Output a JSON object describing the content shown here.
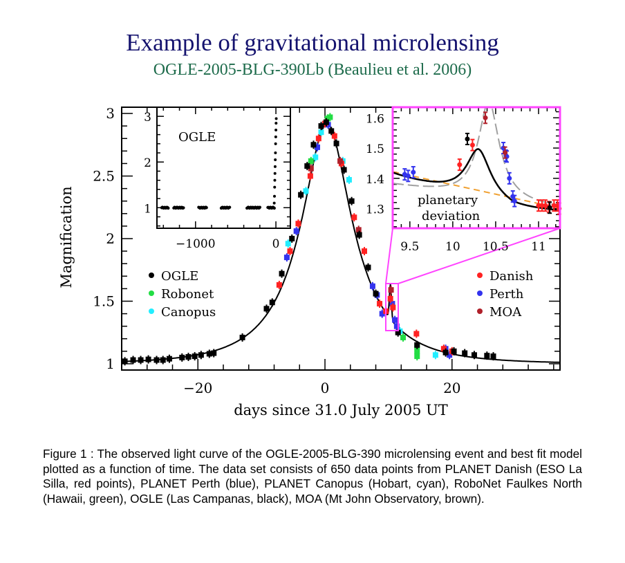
{
  "header": {
    "title": "Example of gravitational microlensing",
    "subtitle": "OGLE-2005-BLG-390Lb (Beaulieu et al. 2006)"
  },
  "colors": {
    "title": "#14126e",
    "subtitle": "#1d6b4b",
    "zoom_box": "#ff44ff",
    "OGLE": "#000000",
    "Robonet": "#22dd44",
    "Canopus": "#22eeff",
    "Danish": "#ff2222",
    "Perth": "#3333ee",
    "MOA": "#b0202a",
    "model": "#000000",
    "single_lens_model": "#a0a0a0",
    "baseline_trend": "#f0a030"
  },
  "chart_data": [
    {
      "id": "main",
      "type": "scatter",
      "title": "",
      "xlabel": "days since 31.0 July 2005 UT",
      "ylabel": "Magnification",
      "xlim": [
        -32,
        37
      ],
      "ylim": [
        0.95,
        3.05
      ],
      "xticks": [
        -20,
        0,
        20
      ],
      "xtick_labels": [
        "−20",
        "0",
        "20"
      ],
      "xminor_step": 4,
      "yticks": [
        1,
        1.5,
        2,
        2.5,
        3
      ],
      "ytick_labels": [
        "1",
        "1.5",
        "2",
        "2.5",
        "3"
      ],
      "yminor_step": 0.1,
      "grid": false,
      "legend": [
        {
          "name": "OGLE",
          "position": "left"
        },
        {
          "name": "Robonet",
          "position": "left"
        },
        {
          "name": "Canopus",
          "position": "left"
        },
        {
          "name": "Danish",
          "position": "right"
        },
        {
          "name": "Perth",
          "position": "right"
        },
        {
          "name": "MOA",
          "position": "right"
        }
      ],
      "model": {
        "name": "best fit model",
        "t0": 0.3,
        "u0": 0.359,
        "tE": 11.0,
        "planet_bump": {
          "t": 10.3,
          "amp": 0.28,
          "width": 0.22
        }
      },
      "series": [
        {
          "name": "OGLE",
          "x": [
            -31.5,
            -30.2,
            -29,
            -27.8,
            -26.5,
            -25.5,
            -24.5,
            -22.5,
            -21.5,
            -20.5,
            -19.5,
            -18.2,
            -17.5,
            -13,
            -9.2,
            -8.3,
            -6.8,
            -5.2,
            -3.8,
            -2.8,
            -1.8,
            -0.6,
            0.2,
            1,
            1.8,
            3,
            4.2,
            5.4,
            6.8,
            8,
            11.5,
            14.5,
            19,
            20.3,
            22,
            23.5,
            25.5,
            26.5
          ],
          "y": [
            1.02,
            1.03,
            1.03,
            1.035,
            1.03,
            1.03,
            1.04,
            1.05,
            1.055,
            1.06,
            1.07,
            1.08,
            1.085,
            1.21,
            1.44,
            1.49,
            1.72,
            2.0,
            2.35,
            2.58,
            2.75,
            2.9,
            2.93,
            2.86,
            2.76,
            2.55,
            2.3,
            2.03,
            1.77,
            1.56,
            1.25,
            1.15,
            1.09,
            1.1,
            1.085,
            1.07,
            1.065,
            1.06
          ]
        },
        {
          "name": "Robonet",
          "x": [
            -2.2,
            0.4,
            0.8,
            12.3,
            14.5,
            14.5,
            14.5
          ],
          "y": [
            2.62,
            2.96,
            2.97,
            1.21,
            1.14,
            1.06,
            1.1
          ]
        },
        {
          "name": "Canopus",
          "x": [
            -5.8,
            -3,
            -1.5,
            -0.6,
            2.8,
            3.8,
            11.8,
            17.4
          ],
          "y": [
            1.96,
            2.38,
            2.65,
            2.85,
            2.62,
            2.47,
            1.26,
            1.07
          ]
        },
        {
          "name": "Danish",
          "x": [
            -7.2,
            -5.5,
            -4.2,
            -2.3,
            -1,
            0,
            1.5,
            2.6,
            4.6,
            6.2,
            8.6,
            9.6,
            10.3,
            10.7,
            14.4,
            18.7,
            20
          ],
          "y": [
            1.63,
            1.9,
            2.12,
            2.5,
            2.8,
            2.92,
            2.82,
            2.6,
            2.17,
            1.9,
            1.48,
            1.42,
            1.52,
            1.45,
            1.24,
            1.12,
            1.1
          ]
        },
        {
          "name": "Perth",
          "x": [
            -6,
            -4.5,
            -1.2,
            0.5,
            7.5,
            8.2,
            9,
            10.6,
            11,
            11.3,
            19,
            19.6
          ],
          "y": [
            1.85,
            2.06,
            2.73,
            2.91,
            1.62,
            1.55,
            1.4,
            1.48,
            1.35,
            1.3,
            1.12,
            1.07
          ]
        },
        {
          "name": "MOA",
          "x": [
            -2.2,
            2.4,
            5.3,
            10.4
          ],
          "y": [
            2.56,
            2.62,
            2.07,
            1.59
          ]
        }
      ]
    },
    {
      "id": "inset-ogle",
      "type": "scatter",
      "title": "OGLE",
      "xlabel": "",
      "ylabel": "",
      "xlim": [
        -1480,
        180
      ],
      "ylim": [
        0.55,
        3.2
      ],
      "xticks": [
        -1000,
        0
      ],
      "xtick_labels": [
        "−1000",
        "0"
      ],
      "xminor_step": 200,
      "yticks": [
        1,
        2,
        3
      ],
      "ytick_labels": [
        "1",
        "2",
        "3"
      ],
      "yminor_step": 0.2,
      "series": [
        {
          "name": "OGLE",
          "baseline_groups": [
            [
              -1420,
              -1340
            ],
            [
              -1270,
              -1150
            ],
            [
              -960,
              -860
            ],
            [
              -680,
              -570
            ],
            [
              -360,
              -200
            ],
            [
              -100,
              -20
            ]
          ],
          "baseline_y": 1.0,
          "peak_x": [
            5,
            8,
            10,
            12,
            14,
            16,
            18,
            20,
            22,
            24,
            26,
            28,
            30
          ],
          "peak_y": [
            1.1,
            1.25,
            1.45,
            1.6,
            1.75,
            1.9,
            2.05,
            2.2,
            2.4,
            2.55,
            2.7,
            2.85,
            2.95
          ]
        }
      ]
    },
    {
      "id": "inset-planetary",
      "type": "scatter",
      "title": "planetary deviation",
      "annotation": "planetary deviation",
      "xlabel": "",
      "ylabel": "",
      "xlim": [
        9.3,
        11.25
      ],
      "ylim": [
        1.235,
        1.635
      ],
      "xticks": [
        9.5,
        10,
        10.5,
        11
      ],
      "xtick_labels": [
        "9.5",
        "10",
        "10.5",
        "11"
      ],
      "xminor_step": 0.1,
      "yticks": [
        1.3,
        1.4,
        1.5,
        1.6
      ],
      "ytick_labels": [
        "1.3",
        "1.4",
        "1.5",
        "1.6"
      ],
      "yminor_step": 0.02,
      "series": [
        {
          "name": "Perth",
          "x": [
            9.44,
            9.48,
            9.54,
            10.59,
            10.62,
            10.63,
            10.66,
            10.7,
            10.72
          ],
          "y": [
            1.413,
            1.408,
            1.42,
            1.5,
            1.475,
            1.472,
            1.4,
            1.34,
            1.325
          ]
        },
        {
          "name": "Danish",
          "x": [
            10.08,
            10.23,
            11.0,
            11.04,
            11.08,
            11.12,
            11.18,
            11.22,
            11.24
          ],
          "y": [
            1.445,
            1.51,
            1.31,
            1.31,
            1.31,
            1.305,
            1.31,
            1.31,
            1.3
          ]
        },
        {
          "name": "OGLE",
          "x": [
            10.17,
            11.13
          ],
          "y": [
            1.53,
            1.303
          ]
        },
        {
          "name": "MOA",
          "x": [
            10.38,
            10.61
          ],
          "y": [
            1.6,
            1.485
          ]
        }
      ],
      "model_curves": [
        {
          "name": "best fit model",
          "style": "solid"
        },
        {
          "name": "single lens model",
          "style": "long-dash"
        },
        {
          "name": "baseline trend",
          "style": "short-dash"
        }
      ]
    }
  ],
  "caption": "Figure 1 : The observed light curve of the OGLE-2005-BLG-390 microlensing event and best fit model plotted as a function of time. The data set consists of 650 data points from PLANET Danish (ESO La Silla, red points), PLANET Perth (blue), PLANET Canopus (Hobart, cyan), RoboNet Faulkes North (Hawaii, green), OGLE (Las Campanas, black), MOA (Mt John Observatory, brown)."
}
